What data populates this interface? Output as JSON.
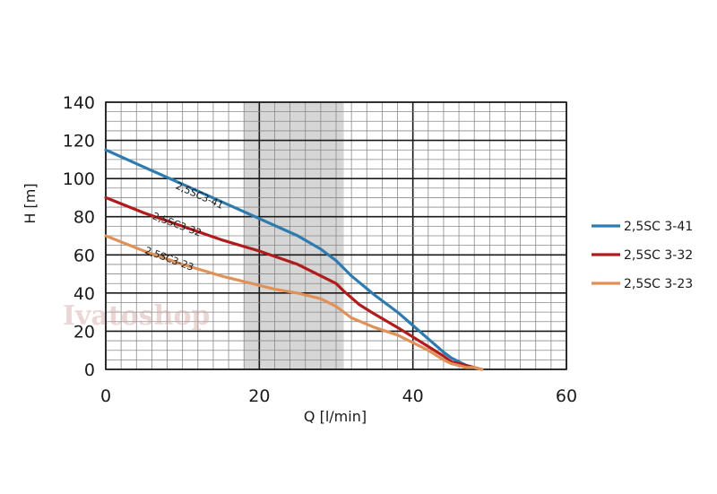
{
  "chart_data": {
    "type": "line",
    "xlabel": "Q [l/min]",
    "ylabel": "H [m]",
    "xlim": [
      0,
      60
    ],
    "ylim": [
      0,
      140
    ],
    "x_ticks": [
      "0",
      "20",
      "40",
      "60"
    ],
    "y_ticks": [
      "0",
      "20",
      "40",
      "60",
      "80",
      "100",
      "120",
      "140"
    ],
    "grid": true,
    "legend_position": "right",
    "highlight_band": [
      18,
      31
    ],
    "watermark": "Ivatoshop",
    "series": [
      {
        "name": "2,5SC 3-41",
        "curve_label": "2,5SC3-41",
        "color": "#2e7bb0",
        "label_at": [
          9,
          95
        ],
        "x": [
          0,
          5,
          10,
          15,
          20,
          25,
          28,
          30,
          32,
          35,
          38,
          40,
          42,
          44,
          45,
          46,
          47,
          48,
          49
        ],
        "y": [
          115,
          106,
          97,
          88,
          79,
          70,
          63,
          57,
          49,
          39,
          30,
          23,
          16,
          9,
          6,
          4,
          2,
          1,
          0
        ]
      },
      {
        "name": "2,5SC 3-32",
        "curve_label": "2,5SC3-32",
        "color": "#b01c1c",
        "label_at": [
          6,
          79
        ],
        "x": [
          0,
          5,
          10,
          15,
          20,
          25,
          28,
          30,
          31,
          33,
          35,
          38,
          40,
          42,
          44,
          45,
          46,
          47,
          48,
          49
        ],
        "y": [
          90,
          82,
          75,
          68,
          62,
          55,
          49,
          45,
          41,
          34,
          29,
          22,
          17,
          12,
          7,
          4,
          3,
          2,
          1,
          0
        ]
      },
      {
        "name": "2,5SC 3-23",
        "curve_label": "2,5SC3-23",
        "color": "#e0915a",
        "label_at": [
          5,
          61
        ],
        "x": [
          0,
          5,
          10,
          15,
          18,
          20,
          22,
          25,
          28,
          30,
          31,
          32,
          35,
          38,
          40,
          42,
          44,
          45,
          46,
          47,
          48,
          49
        ],
        "y": [
          70,
          62,
          55,
          49,
          46,
          44,
          42,
          40,
          37,
          33,
          30,
          27,
          22,
          18,
          14,
          10,
          5,
          3,
          2,
          1,
          1,
          0
        ]
      }
    ]
  }
}
